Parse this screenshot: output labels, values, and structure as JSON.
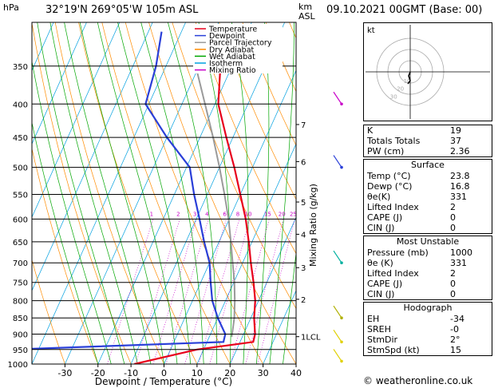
{
  "header": {
    "pressure_unit": "hPa",
    "location": "32°19'N  269°05'W  105m  ASL",
    "km_unit": "km",
    "km_asl": "ASL",
    "datetime": "09.10.2021  00GMT  (Base: 00)"
  },
  "chart_data": {
    "type": "line",
    "xlabel": "Dewpoint / Temperature (°C)",
    "ylabel": "Mixing Ratio (g/kg)",
    "xlim": [
      -40,
      40
    ],
    "ylim": [
      1000,
      300
    ],
    "y_scale": "log",
    "pressure_ticks": [
      350,
      400,
      450,
      500,
      550,
      600,
      650,
      700,
      750,
      800,
      850,
      900,
      950,
      1000
    ],
    "temperature_ticks": [
      -30,
      -20,
      -10,
      0,
      10,
      20,
      30,
      40
    ],
    "km_ticks": [
      {
        "label": "7",
        "p": 430
      },
      {
        "label": "6",
        "p": 490
      },
      {
        "label": "5",
        "p": 565
      },
      {
        "label": "4",
        "p": 633
      },
      {
        "label": "3",
        "p": 712
      },
      {
        "label": "2",
        "p": 796
      },
      {
        "label": "1LCL",
        "p": 908
      }
    ],
    "mixing_ratio_labels": [
      "1",
      "2",
      "3",
      "4",
      "6",
      "8",
      "10",
      "15",
      "20",
      "25"
    ],
    "mixing_ratio_values": [
      1,
      2,
      3,
      4,
      6,
      8,
      10,
      15,
      20,
      25
    ],
    "legend": {
      "placement": "top-left",
      "entries": [
        {
          "name": "Temperature",
          "color": "#e8001c"
        },
        {
          "name": "Dewpoint",
          "color": "#2a3fd8"
        },
        {
          "name": "Parcel Trajectory",
          "color": "#9a9a9a"
        },
        {
          "name": "Dry Adiabat",
          "color": "#ff8c00"
        },
        {
          "name": "Wet Adiabat",
          "color": "#00a600"
        },
        {
          "name": "Isotherm",
          "color": "#00a0e0"
        },
        {
          "name": "Mixing Ratio",
          "color": "#c800c8"
        }
      ]
    },
    "series": [
      {
        "name": "Temperature",
        "color": "#e8001c",
        "points": [
          [
            1000,
            -9
          ],
          [
            950,
            8
          ],
          [
            925,
            24
          ],
          [
            900,
            23.5
          ],
          [
            850,
            21
          ],
          [
            800,
            19
          ],
          [
            750,
            16
          ],
          [
            700,
            12.5
          ],
          [
            650,
            9
          ],
          [
            600,
            5
          ],
          [
            550,
            0
          ],
          [
            500,
            -5.5
          ],
          [
            450,
            -12
          ],
          [
            400,
            -19
          ],
          [
            350,
            -23.5
          ]
        ]
      },
      {
        "name": "Dewpoint",
        "color": "#2a3fd8",
        "points": [
          [
            1000,
            -48
          ],
          [
            950,
            -48
          ],
          [
            925,
            15
          ],
          [
            900,
            14.5
          ],
          [
            850,
            10
          ],
          [
            800,
            6
          ],
          [
            750,
            3
          ],
          [
            700,
            0
          ],
          [
            650,
            -4.5
          ],
          [
            600,
            -9
          ],
          [
            550,
            -14
          ],
          [
            500,
            -19
          ],
          [
            450,
            -30
          ],
          [
            400,
            -41
          ],
          [
            350,
            -43
          ],
          [
            310,
            -46
          ]
        ]
      },
      {
        "name": "Parcel Trajectory",
        "color": "#9a9a9a",
        "points": [
          [
            908,
            16.8
          ],
          [
            850,
            15
          ],
          [
            800,
            12.8
          ],
          [
            750,
            10.2
          ],
          [
            700,
            7
          ],
          [
            650,
            3.6
          ],
          [
            600,
            -0.2
          ],
          [
            550,
            -4.8
          ],
          [
            500,
            -10
          ],
          [
            450,
            -16
          ],
          [
            400,
            -23
          ],
          [
            350,
            -31
          ]
        ]
      }
    ]
  },
  "hodograph": {
    "label": "kt",
    "ring_labels": [
      "10",
      "20",
      "30"
    ]
  },
  "indices": {
    "rows": [
      {
        "k": "K",
        "v": "19"
      },
      {
        "k": "Totals Totals",
        "v": "37"
      },
      {
        "k": "PW (cm)",
        "v": "2.36"
      }
    ]
  },
  "surface": {
    "title": "Surface",
    "rows": [
      {
        "k": "Temp (°C)",
        "v": "23.8"
      },
      {
        "k": "Dewp (°C)",
        "v": "16.8"
      },
      {
        "k": "θe(K)",
        "v": "331"
      },
      {
        "k": "Lifted Index",
        "v": "2"
      },
      {
        "k": "CAPE (J)",
        "v": "0"
      },
      {
        "k": "CIN (J)",
        "v": "0"
      }
    ]
  },
  "most_unstable": {
    "title": "Most Unstable",
    "rows": [
      {
        "k": "Pressure (mb)",
        "v": "1000"
      },
      {
        "k": "θe (K)",
        "v": "331"
      },
      {
        "k": "Lifted Index",
        "v": "2"
      },
      {
        "k": "CAPE (J)",
        "v": "0"
      },
      {
        "k": "CIN (J)",
        "v": "0"
      }
    ]
  },
  "hodograph_table": {
    "title": "Hodograph",
    "rows": [
      {
        "k": "EH",
        "v": "-34"
      },
      {
        "k": "SREH",
        "v": "-0"
      },
      {
        "k": "StmDir",
        "v": "2°"
      },
      {
        "k": "StmSpd (kt)",
        "v": "15"
      }
    ]
  },
  "footer": "© weatheronline.co.uk"
}
